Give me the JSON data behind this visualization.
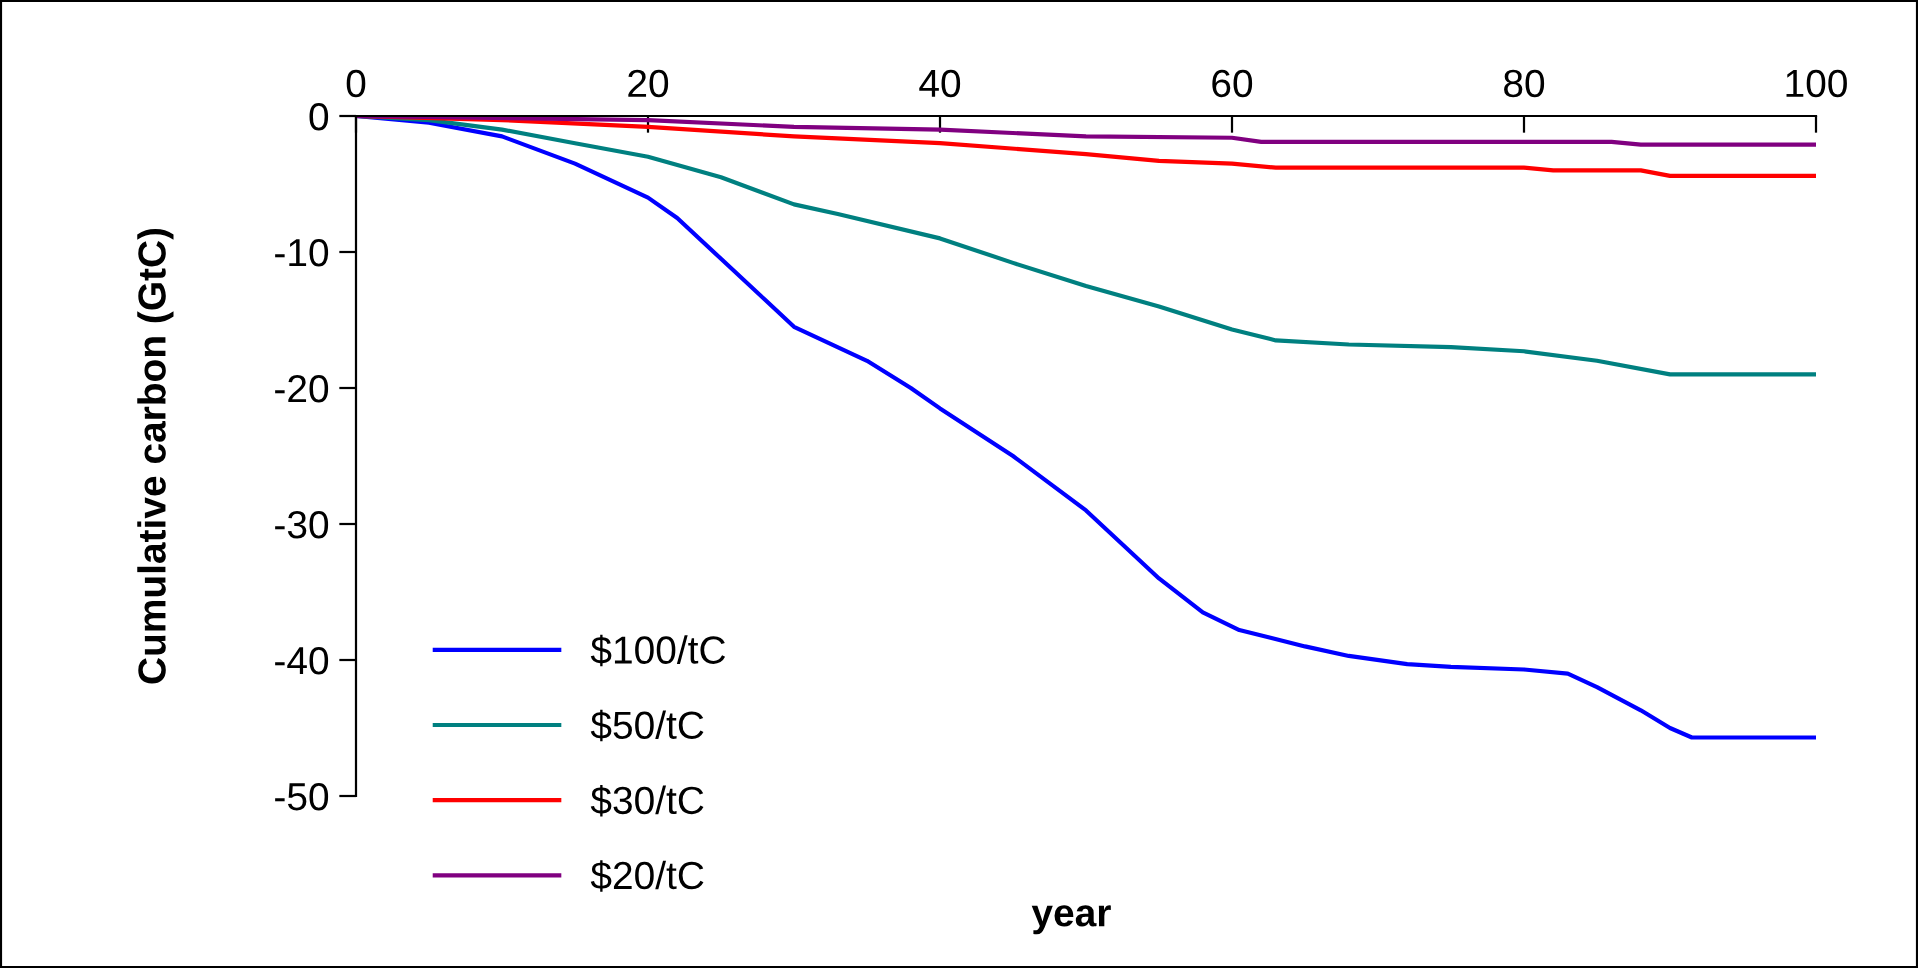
{
  "chart_data": {
    "type": "line",
    "xlabel": "year",
    "ylabel": "Cumulative carbon (GtC)",
    "xlim": [
      0,
      100
    ],
    "xticks": [
      0,
      20,
      40,
      60,
      80,
      100
    ],
    "ylim": [
      -50,
      0
    ],
    "yticks": [
      -50,
      -40,
      -30,
      -20,
      -10,
      0
    ],
    "grid": false,
    "legend": "bottom left",
    "marker": "none",
    "line_style": "solid",
    "series": [
      {
        "name": "$100/tC",
        "color": "#0000ff",
        "x": [
          0,
          5,
          10,
          15,
          20,
          22,
          25,
          28,
          30,
          35,
          38,
          40,
          45,
          50,
          53,
          55,
          58,
          60.5,
          65,
          68,
          72,
          75,
          80,
          83,
          85,
          88,
          90,
          91.5,
          100
        ],
        "values": [
          0,
          -0.5,
          -1.5,
          -3.5,
          -6,
          -7.5,
          -10.5,
          -13.5,
          -15.5,
          -18,
          -20,
          -21.5,
          -25,
          -29,
          -32,
          -34,
          -36.5,
          -37.8,
          -39,
          -39.7,
          -40.3,
          -40.5,
          -40.7,
          -41,
          -42,
          -43.7,
          -45,
          -45.7,
          -45.7
        ]
      },
      {
        "name": "$50/tC",
        "color": "#008080",
        "x": [
          0,
          5,
          10,
          15,
          20,
          25,
          30,
          33,
          40,
          45,
          50,
          55,
          60,
          63,
          68,
          75,
          80,
          85,
          90,
          100
        ],
        "values": [
          0,
          -0.3,
          -1,
          -2,
          -3,
          -4.5,
          -6.5,
          -7.2,
          -9,
          -10.8,
          -12.5,
          -14,
          -15.7,
          -16.5,
          -16.8,
          -17,
          -17.3,
          -18,
          -19,
          -19
        ]
      },
      {
        "name": "$30/tC",
        "color": "#ff0000",
        "x": [
          0,
          10,
          20,
          30,
          40,
          50,
          55,
          60,
          63,
          80,
          82,
          88,
          90,
          100
        ],
        "values": [
          0,
          -0.3,
          -0.8,
          -1.5,
          -2,
          -2.8,
          -3.3,
          -3.5,
          -3.8,
          -3.8,
          -4,
          -4,
          -4.4,
          -4.4
        ]
      },
      {
        "name": "$20/tC",
        "color": "#800080",
        "x": [
          0,
          20,
          30,
          40,
          50,
          60,
          62,
          86,
          88,
          100
        ],
        "values": [
          0,
          -0.3,
          -0.8,
          -1,
          -1.5,
          -1.6,
          -1.9,
          -1.9,
          -2.1,
          -2.1
        ]
      }
    ]
  }
}
